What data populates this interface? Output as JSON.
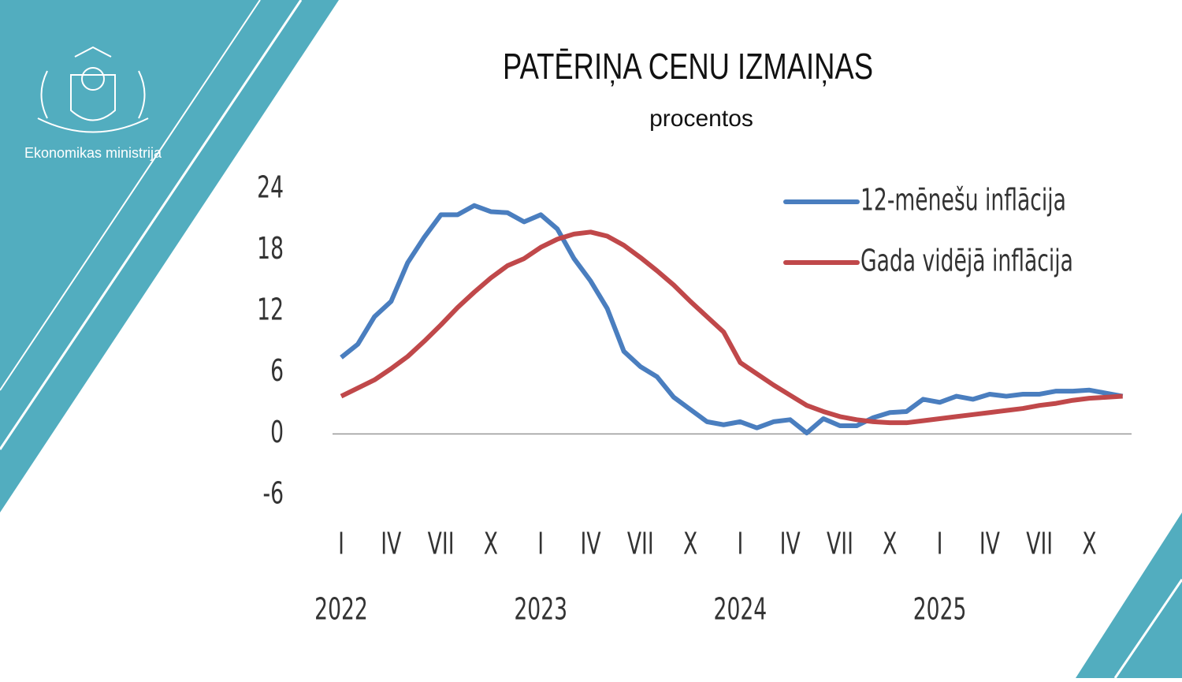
{
  "brand": "Ekonomikas ministrija",
  "chart_data": {
    "type": "line",
    "title": "PATĒRIŅA CENU IZMAIŅAS",
    "subtitle": "procentos",
    "categories": [
      "I",
      null,
      null,
      "IV",
      null,
      null,
      "VII",
      null,
      null,
      "X",
      null,
      null,
      "I",
      null,
      null,
      "IV",
      null,
      null,
      "VII",
      null,
      null,
      "X",
      null,
      null,
      "I",
      null,
      null,
      "IV",
      null,
      null,
      "VII",
      null,
      null,
      "X",
      null,
      null,
      "I",
      null,
      null,
      "IV",
      null,
      null,
      "VII",
      null,
      null,
      "X",
      null,
      null
    ],
    "years": [
      "2022",
      null,
      null,
      null,
      null,
      null,
      null,
      null,
      null,
      null,
      null,
      null,
      "2023",
      null,
      null,
      null,
      null,
      null,
      null,
      null,
      null,
      null,
      null,
      null,
      "2024",
      null,
      null,
      null,
      null,
      null,
      null,
      null,
      null,
      null,
      null,
      null,
      "2025",
      null,
      null,
      null,
      null,
      null,
      null,
      null,
      null,
      null,
      null,
      null
    ],
    "series": [
      {
        "name": "12-mēnešu inflācija",
        "color": "#4a7ebf",
        "values": [
          7.5,
          8.8,
          11.5,
          13.0,
          16.8,
          19.3,
          21.5,
          21.5,
          22.4,
          21.8,
          21.7,
          20.8,
          21.5,
          20.1,
          17.2,
          15.0,
          12.3,
          8.1,
          6.6,
          5.6,
          3.6,
          2.4,
          1.2,
          0.9,
          1.2,
          0.6,
          1.2,
          1.4,
          0.1,
          1.5,
          0.8,
          0.8,
          1.6,
          2.1,
          2.2,
          3.4,
          3.1,
          3.7,
          3.4,
          3.9,
          3.7,
          3.9,
          3.9,
          4.2,
          4.2,
          4.3,
          4.0,
          3.7
        ]
      },
      {
        "name": "Gada vidējā inflācija",
        "color": "#c0484a",
        "values": [
          3.7,
          4.5,
          5.3,
          6.4,
          7.6,
          9.1,
          10.7,
          12.4,
          13.9,
          15.3,
          16.5,
          17.2,
          18.3,
          19.1,
          19.6,
          19.8,
          19.4,
          18.5,
          17.3,
          16.0,
          14.6,
          13.0,
          11.5,
          10.0,
          7.0,
          5.9,
          4.8,
          3.8,
          2.8,
          2.2,
          1.7,
          1.4,
          1.2,
          1.1,
          1.1,
          1.3,
          1.5,
          1.7,
          1.9,
          2.1,
          2.3,
          2.5,
          2.8,
          3.0,
          3.3,
          3.5,
          3.6,
          3.7
        ]
      }
    ],
    "ylim": [
      -6,
      24
    ],
    "yticks": [
      -6,
      0,
      6,
      12,
      18,
      24
    ],
    "legend": "upper right"
  }
}
